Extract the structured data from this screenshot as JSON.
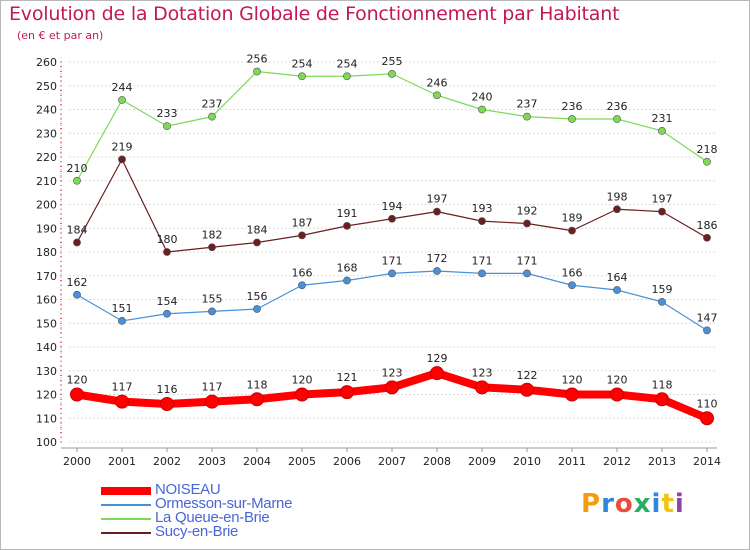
{
  "title": "Evolution de la Dotation Globale de Fonctionnement par Habitant",
  "subtitle": "(en € et par an)",
  "logo": {
    "text": "Proxiti",
    "letters": [
      "P",
      "r",
      "o",
      "x",
      "i",
      "t",
      "i"
    ],
    "colors": [
      "#f39c12",
      "#2e86de",
      "#e74c3c",
      "#27ae60",
      "#2e86de",
      "#f1c40f",
      "#8e44ad"
    ]
  },
  "chart_data": {
    "type": "line",
    "title": "Evolution de la Dotation Globale de Fonctionnement par Habitant",
    "subtitle": "(en € et par an)",
    "x": [
      "2000",
      "2001",
      "2002",
      "2003",
      "2004",
      "2005",
      "2006",
      "2007",
      "2008",
      "2009",
      "2010",
      "2011",
      "2012",
      "2013",
      "2014"
    ],
    "ylim": [
      100,
      260
    ],
    "yticks": [
      100,
      110,
      120,
      130,
      140,
      150,
      160,
      170,
      180,
      190,
      200,
      210,
      220,
      230,
      240,
      250,
      260
    ],
    "grid": "horizontal",
    "legend_position": "bottom-left",
    "series": [
      {
        "name": "NOISEAU",
        "color": "#ff0000",
        "emphasis": true,
        "values": [
          120,
          117,
          116,
          117,
          118,
          120,
          121,
          123,
          129,
          123,
          122,
          120,
          120,
          118,
          110
        ]
      },
      {
        "name": "Ormesson-sur-Marne",
        "color": "#4a90d9",
        "values": [
          162,
          151,
          154,
          155,
          156,
          166,
          168,
          171,
          172,
          171,
          171,
          166,
          164,
          159,
          147
        ]
      },
      {
        "name": "La Queue-en-Brie",
        "color": "#7ed957",
        "values": [
          210,
          244,
          233,
          237,
          256,
          254,
          254,
          255,
          246,
          240,
          237,
          236,
          236,
          231,
          218
        ]
      },
      {
        "name": "Sucy-en-Brie",
        "color": "#6b1f1f",
        "values": [
          184,
          219,
          180,
          182,
          184,
          187,
          191,
          194,
          197,
          193,
          192,
          189,
          198,
          197,
          186
        ]
      }
    ]
  }
}
